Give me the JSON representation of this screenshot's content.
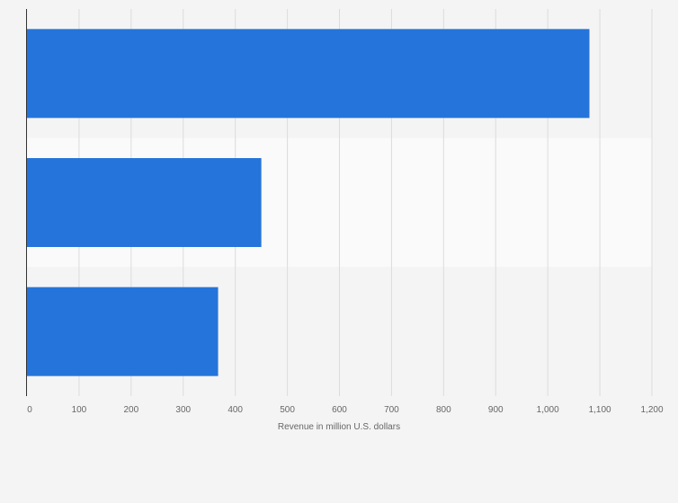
{
  "chart_data": {
    "type": "bar",
    "orientation": "horizontal",
    "title": "",
    "xlabel": "Revenue in million U.S. dollars",
    "ylabel": "",
    "categories": [
      "",
      "",
      ""
    ],
    "values": [
      1080,
      450,
      367
    ],
    "xlim": [
      0,
      1200
    ],
    "x_ticks": [
      0,
      100,
      200,
      300,
      400,
      500,
      600,
      700,
      800,
      900,
      1000,
      1100,
      1200
    ],
    "x_tick_labels": [
      "0",
      "100",
      "200",
      "300",
      "400",
      "500",
      "600",
      "700",
      "800",
      "900",
      "1,000",
      "1,100",
      "1,200"
    ],
    "grid": true,
    "legend": "none",
    "bar_color": "#2574db",
    "band_colors": [
      "#f4f4f4",
      "#fafafa"
    ]
  }
}
